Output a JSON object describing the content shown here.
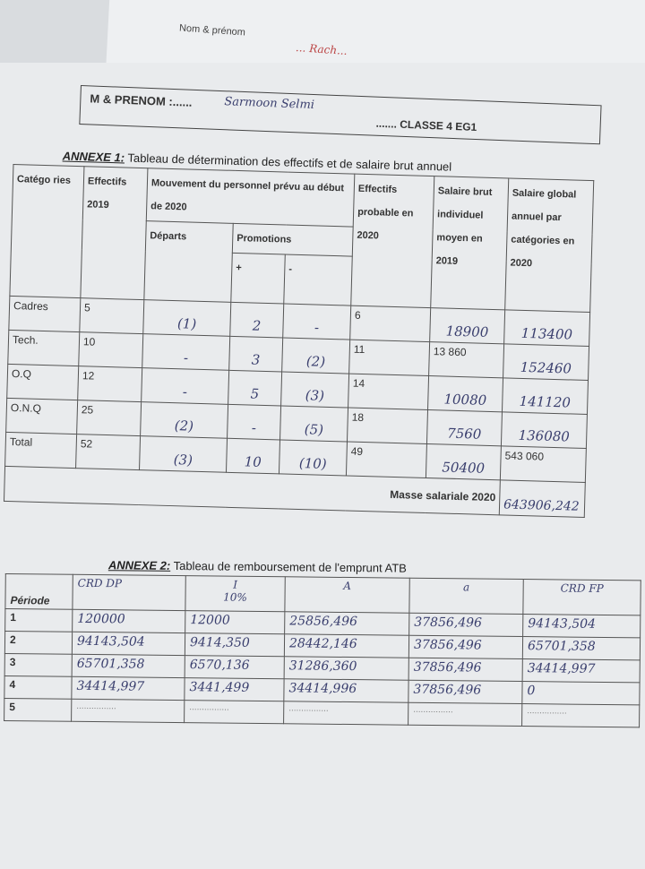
{
  "back_sheet": {
    "label": "Nom & prénom",
    "handwriting": "... Rach..."
  },
  "header": {
    "name_label": "M & PRENOM :......",
    "student_name": "Sarmoon Selmi",
    "class_label": "....... CLASSE 4 EG1"
  },
  "annex1": {
    "title_label": "ANNEXE 1:",
    "title": " Tableau de détermination des effectifs et de salaire brut annuel",
    "headers": {
      "categories": "Catégo ries",
      "effectifs_2019": "Effectifs 2019",
      "mouvement": "Mouvement du personnel prévu au début de 2020",
      "departs": "Départs",
      "promotions": "Promotions",
      "plus": "+",
      "minus": "-",
      "effectifs_probable": "Effectifs probable en 2020",
      "salaire_brut": "Salaire brut individuel moyen en 2019",
      "salaire_global": "Salaire global annuel par catégories en 2020"
    },
    "rows": [
      {
        "cat": "Cadres",
        "eff2019": "5",
        "departs": "(1)",
        "plus": "2",
        "minus": "-",
        "eff2020": "6",
        "salaire": "18900",
        "global": "113400"
      },
      {
        "cat": "Tech.",
        "eff2019": "10",
        "departs": "-",
        "plus": "3",
        "minus": "(2)",
        "eff2020": "11",
        "salaire": "13 860",
        "global": "152460"
      },
      {
        "cat": "O.Q",
        "eff2019": "12",
        "departs": "-",
        "plus": "5",
        "minus": "(3)",
        "eff2020": "14",
        "salaire": "10080",
        "global": "141120"
      },
      {
        "cat": "O.N.Q",
        "eff2019": "25",
        "departs": "(2)",
        "plus": "-",
        "minus": "(5)",
        "eff2020": "18",
        "salaire": "7560",
        "global": "136080"
      },
      {
        "cat": "Total",
        "eff2019": "52",
        "departs": "(3)",
        "plus": "10",
        "minus": "(10)",
        "eff2020": "49",
        "salaire": "50400",
        "global": "543 060"
      }
    ],
    "masse_label": "Masse salariale 2020",
    "masse_value": "643906,242"
  },
  "annex2": {
    "title_label": "ANNEXE 2:",
    "title": " Tableau de remboursement de l'emprunt ATB",
    "headers": {
      "periode": "Période",
      "crd_debut": "CRD DP",
      "interet": "I",
      "interet_rate": "10%",
      "amort": "A",
      "annuite": "a",
      "crd_fin": "CRD FP"
    },
    "rows": [
      {
        "p": "1",
        "crd_debut": "120000",
        "i": "12000",
        "a_amort": "25856,496",
        "annuite": "37856,496",
        "crd_fin": "94143,504"
      },
      {
        "p": "2",
        "crd_debut": "94143,504",
        "i": "9414,350",
        "a_amort": "28442,146",
        "annuite": "37856,496",
        "crd_fin": "65701,358"
      },
      {
        "p": "3",
        "crd_debut": "65701,358",
        "i": "6570,136",
        "a_amort": "31286,360",
        "annuite": "37856,496",
        "crd_fin": "34414,997"
      },
      {
        "p": "4",
        "crd_debut": "34414,997",
        "i": "3441,499",
        "a_amort": "34414,996",
        "annuite": "37856,496",
        "crd_fin": "0"
      },
      {
        "p": "5",
        "crd_debut": "",
        "i": "",
        "a_amort": "",
        "annuite": "",
        "crd_fin": ""
      }
    ],
    "dots": "................"
  }
}
